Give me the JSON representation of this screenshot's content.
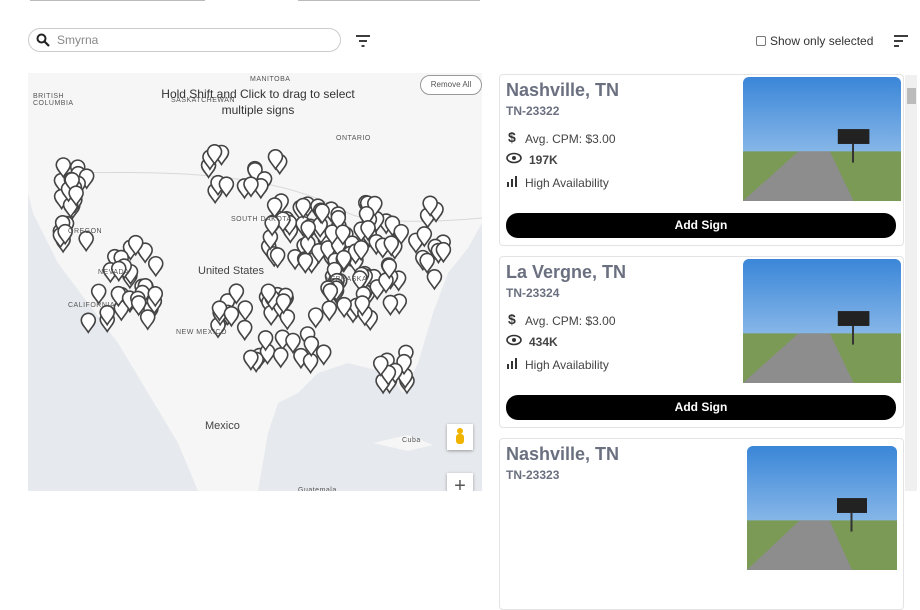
{
  "search": {
    "placeholder": "Smyrna"
  },
  "filter_toggle": "Show only selected",
  "map": {
    "instruction": "Hold Shift and Click to drag to select multiple signs",
    "remove_all": "Remove All",
    "labels": [
      "MANITOBA",
      "BRITISH COLUMBIA",
      "SASKATCHEWAN",
      "ONTARIO",
      "OREGON",
      "SOUTH DAKOTA",
      "NEVADA",
      "CALIFORNIA",
      "NEBRASKA",
      "United States",
      "NEW MEXICO",
      "Mexico",
      "Cuba",
      "Guatemala"
    ]
  },
  "cards": [
    {
      "city": "Nashville, TN",
      "id": "TN-23322",
      "cpm": "Avg. CPM: $3.00",
      "views": "197K",
      "availability": "High Availability",
      "button": "Add Sign"
    },
    {
      "city": "La Vergne, TN",
      "id": "TN-23324",
      "cpm": "Avg. CPM: $3.00",
      "views": "434K",
      "availability": "High Availability",
      "button": "Add Sign"
    },
    {
      "city": "Nashville, TN",
      "id": "TN-23323"
    }
  ]
}
